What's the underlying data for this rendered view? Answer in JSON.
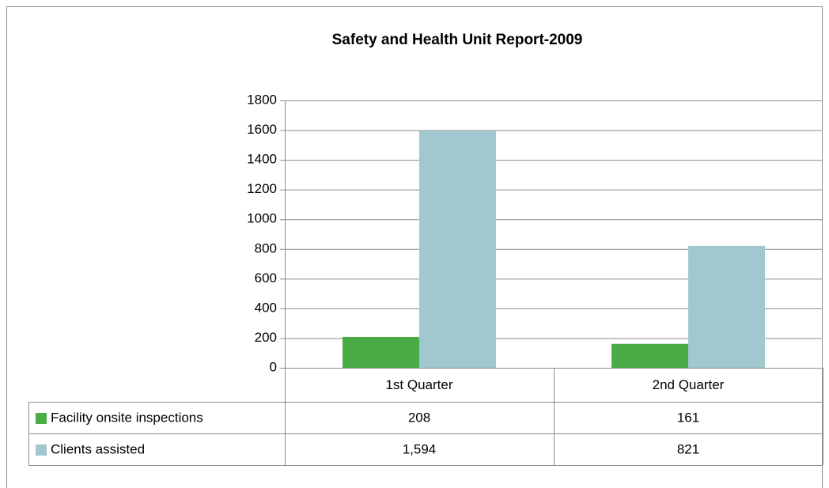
{
  "chart_data": {
    "type": "bar",
    "title": "Safety and Health Unit Report-2009",
    "categories": [
      "1st Quarter",
      "2nd Quarter"
    ],
    "series": [
      {
        "name": "Facility onsite inspections",
        "color": "#4aac47",
        "values": [
          208,
          161
        ]
      },
      {
        "name": "Clients assisted",
        "color": "#a1c7cf",
        "values": [
          1594,
          821
        ],
        "value_labels": [
          "1,594",
          "821"
        ]
      }
    ],
    "ylim": [
      0,
      1800
    ],
    "yticks": [
      0,
      200,
      400,
      600,
      800,
      1000,
      1200,
      1400,
      1600,
      1800
    ],
    "grid": true
  }
}
